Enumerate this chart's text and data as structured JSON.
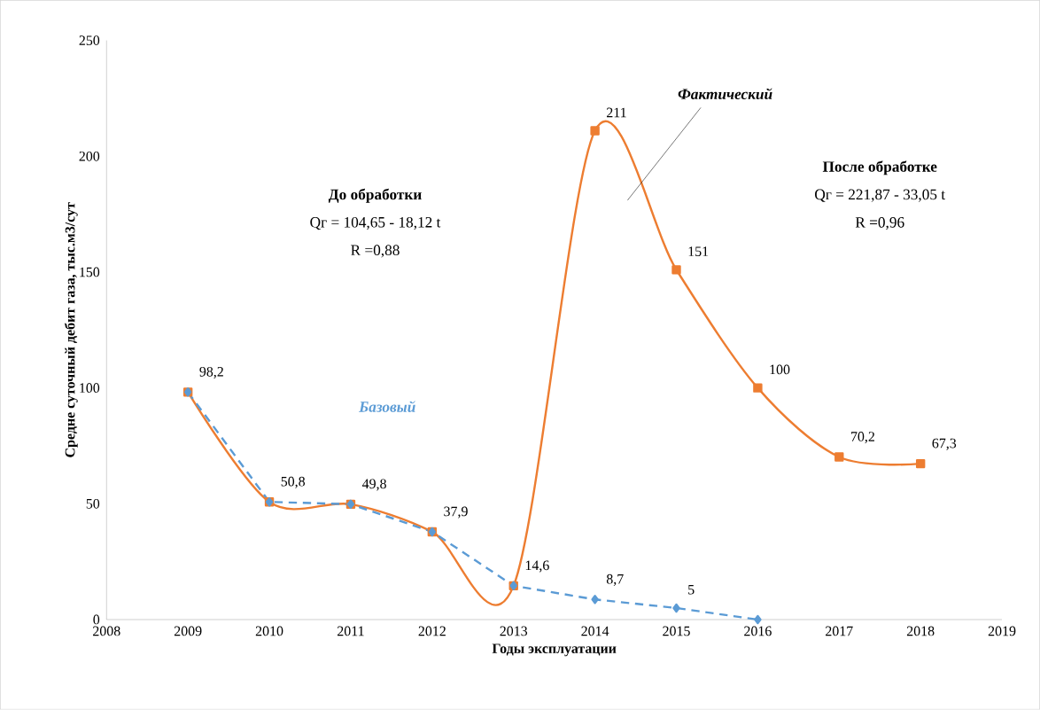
{
  "chart_data": {
    "type": "line",
    "xlabel": "Годы эксплуатации",
    "ylabel": "Средне суточный дебит газа, тыс.м3/сут",
    "x": [
      2009,
      2010,
      2011,
      2012,
      2013,
      2014,
      2015,
      2016,
      2017,
      2018
    ],
    "series": [
      {
        "name": "Фактический",
        "color": "#ed7d31",
        "marker": "square",
        "line_style": "solid",
        "values": [
          98.2,
          50.8,
          49.8,
          37.9,
          14.6,
          211,
          151,
          100,
          70.2,
          67.3
        ],
        "value_labels": [
          "98,2",
          "50,8",
          "49,8",
          "37,9",
          "14,6",
          "211",
          "151",
          "100",
          "70,2",
          "67,3"
        ]
      },
      {
        "name": "Базовый",
        "color": "#5b9bd5",
        "marker": "diamond",
        "line_style": "dashed",
        "x": [
          2009,
          2010,
          2011,
          2012,
          2013,
          2014,
          2015,
          2016
        ],
        "values": [
          98.2,
          50.8,
          49.8,
          37.9,
          14.6,
          8.7,
          5,
          0
        ],
        "value_labels": [
          null,
          null,
          null,
          null,
          null,
          "8,7",
          "5",
          null
        ]
      }
    ],
    "annotations": [
      "До обработки",
      "Qг = 104,65 - 18,12 t",
      "R =0,88",
      "После обработке",
      "Qг = 221,87 - 33,05 t",
      "R =0,96"
    ],
    "xlim": [
      2008,
      2019
    ],
    "xticks": [
      2008,
      2009,
      2010,
      2011,
      2012,
      2013,
      2014,
      2015,
      2016,
      2017,
      2018,
      2019
    ],
    "ylim": [
      0,
      250
    ],
    "yticks": [
      0,
      50,
      100,
      150,
      200,
      250
    ],
    "grid": false
  }
}
